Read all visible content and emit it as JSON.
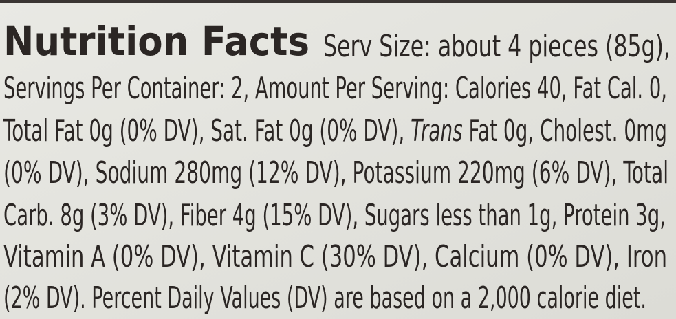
{
  "label": {
    "title": "Nutrition Facts",
    "lines": [
      "Serv Size: about 4 pieces (85g),",
      "Servings Per Container: 2, Amount Per Serving: Calories 40, Fat Cal. 0,",
      [
        "Total Fat 0g (0% DV), Sat. Fat 0g (0% DV), ",
        "Trans",
        " Fat 0g, Cholest. 0mg"
      ],
      "(0% DV), Sodium 280mg (12% DV), Potassium 220mg (6% DV), Total",
      "Carb. 8g (3% DV), Fiber 4g (15% DV), Sugars less than 1g, Protein 3g,",
      "Vitamin A (0% DV), Vitamin C (30% DV), Calcium (0% DV), Iron",
      "(2% DV). Percent Daily Values (DV) are based on a 2,000 calorie diet."
    ]
  }
}
